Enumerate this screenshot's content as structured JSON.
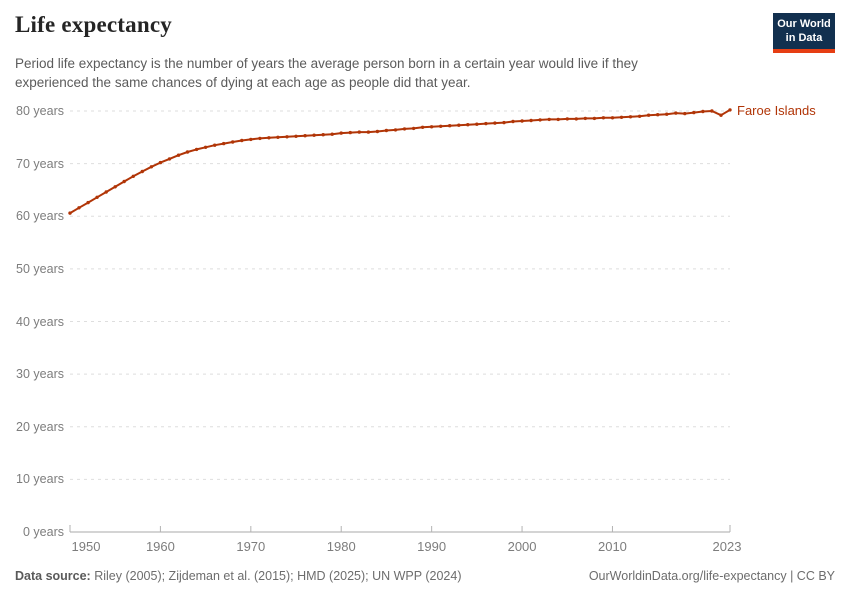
{
  "header": {
    "title": "Life expectancy",
    "subtitle_line1": "Period life expectancy is the number of years the average person born in a certain year would live if they",
    "subtitle_line2": "experienced the same chances of dying at each age as people did that year.",
    "logo_line1": "Our World",
    "logo_line2": "in Data",
    "logo_bg_color": "#12304f",
    "logo_accent_color": "#e63e13"
  },
  "chart_data": {
    "type": "line",
    "title": "Life expectancy",
    "xlabel": "",
    "ylabel": "",
    "xlim": [
      1950,
      2023
    ],
    "ylim": [
      0,
      80
    ],
    "grid": "horizontal-dashed",
    "legend_position": "end-of-line",
    "x_ticks": [
      1950,
      1960,
      1970,
      1980,
      1990,
      2000,
      2010,
      2023
    ],
    "x_tick_labels": [
      "1950",
      "1960",
      "1970",
      "1980",
      "1990",
      "2000",
      "2010",
      "2023"
    ],
    "y_ticks": [
      80,
      70,
      60,
      50,
      40,
      30,
      20,
      10,
      0
    ],
    "y_tick_labels": [
      "80 years",
      "70 years",
      "60 years",
      "50 years",
      "40 years",
      "30 years",
      "20 years",
      "10 years",
      "0 years"
    ],
    "series": [
      {
        "name": "Faroe Islands",
        "color": "#b13507",
        "x": [
          1950,
          1951,
          1952,
          1953,
          1954,
          1955,
          1956,
          1957,
          1958,
          1959,
          1960,
          1961,
          1962,
          1963,
          1964,
          1965,
          1966,
          1967,
          1968,
          1969,
          1970,
          1971,
          1972,
          1973,
          1974,
          1975,
          1976,
          1977,
          1978,
          1979,
          1980,
          1981,
          1982,
          1983,
          1984,
          1985,
          1986,
          1987,
          1988,
          1989,
          1990,
          1991,
          1992,
          1993,
          1994,
          1995,
          1996,
          1997,
          1998,
          1999,
          2000,
          2001,
          2002,
          2003,
          2004,
          2005,
          2006,
          2007,
          2008,
          2009,
          2010,
          2011,
          2012,
          2013,
          2014,
          2015,
          2016,
          2017,
          2018,
          2019,
          2020,
          2021,
          2022,
          2023
        ],
        "values": [
          60.6,
          61.6,
          62.6,
          63.6,
          64.6,
          65.6,
          66.6,
          67.6,
          68.5,
          69.4,
          70.2,
          70.9,
          71.6,
          72.2,
          72.7,
          73.1,
          73.5,
          73.8,
          74.1,
          74.4,
          74.6,
          74.8,
          74.9,
          75.0,
          75.1,
          75.2,
          75.3,
          75.4,
          75.5,
          75.6,
          75.8,
          75.9,
          76.0,
          76.0,
          76.1,
          76.3,
          76.4,
          76.6,
          76.7,
          76.9,
          77.0,
          77.1,
          77.2,
          77.3,
          77.4,
          77.5,
          77.6,
          77.7,
          77.8,
          78.0,
          78.1,
          78.2,
          78.3,
          78.4,
          78.4,
          78.5,
          78.5,
          78.6,
          78.6,
          78.7,
          78.7,
          78.8,
          78.9,
          79.0,
          79.2,
          79.3,
          79.4,
          79.6,
          79.5,
          79.7,
          79.9,
          80.0,
          79.2,
          80.2
        ]
      }
    ],
    "style": {
      "grid_color": "#dedede",
      "axis_color": "#a8a8a8",
      "tick_color": "#b3b3b3"
    }
  },
  "footer": {
    "datasource_label": "Data source:",
    "datasource_text": "Riley (2005); Zijdeman et al. (2015); HMD (2025); UN WPP (2024)",
    "credit": "OurWorldinData.org/life-expectancy | CC BY"
  }
}
